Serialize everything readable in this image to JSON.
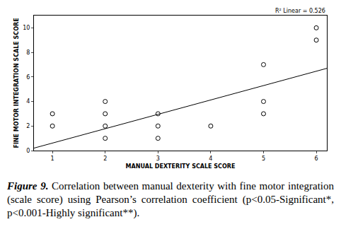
{
  "chart_data": {
    "type": "scatter",
    "x": [
      1,
      1,
      2,
      2,
      2,
      2,
      3,
      3,
      3,
      4,
      5,
      5,
      5,
      6,
      6
    ],
    "values": [
      3,
      2,
      4,
      3,
      2,
      1,
      3,
      2,
      1,
      2,
      7,
      4,
      3,
      10,
      9
    ],
    "marker": "circle-open",
    "color": "#000000",
    "fit_line": {
      "x": [
        0.65,
        6.2
      ],
      "y": [
        0.2,
        6.7
      ],
      "color": "#000000",
      "line_style": "solid"
    },
    "annotation": "R² Linear = 0.526",
    "xlabel": "MANUAL DEXTERITY SCALE SCORE",
    "ylabel": "FINE MOTOR INTEGRATION SCALE SCORE",
    "xlim": [
      0.65,
      6.2
    ],
    "ylim": [
      0,
      11
    ],
    "xticks": [
      1,
      2,
      3,
      4,
      5,
      6
    ],
    "yticks": [
      0,
      2,
      4,
      6,
      8,
      10
    ],
    "grid": false,
    "caption": {
      "label": "Figure 9.",
      "text": "Correlation between manual dexterity with fine motor integration (scale score) using Pearson’s correlation coefficient (p<0.05-Significant*, p<0.001-Highly significant**)."
    }
  }
}
